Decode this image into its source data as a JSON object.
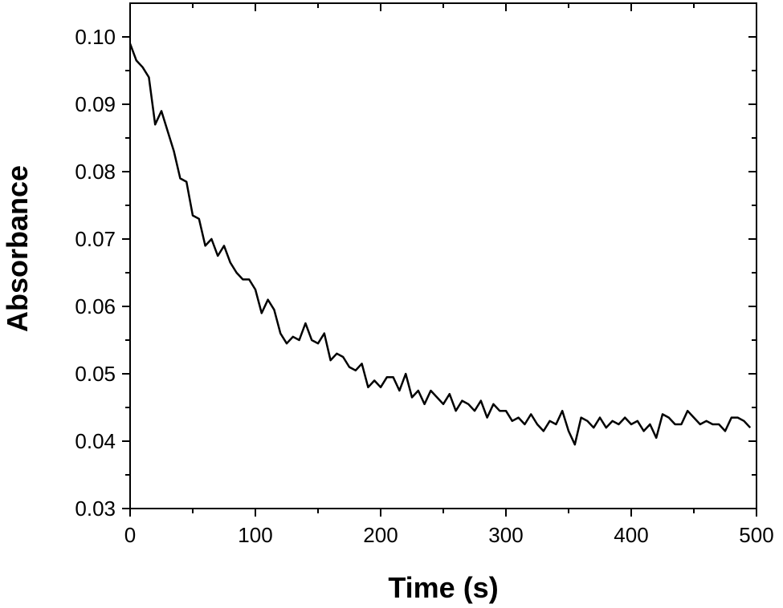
{
  "chart_data": {
    "type": "line",
    "xlabel": "Time (s)",
    "ylabel": "Absorbance",
    "color": "#000000",
    "x": [
      0,
      5,
      10,
      15,
      20,
      25,
      30,
      35,
      40,
      45,
      50,
      55,
      60,
      65,
      70,
      75,
      80,
      85,
      90,
      95,
      100,
      105,
      110,
      115,
      120,
      125,
      130,
      135,
      140,
      145,
      150,
      155,
      160,
      165,
      170,
      175,
      180,
      185,
      190,
      195,
      200,
      205,
      210,
      215,
      220,
      225,
      230,
      235,
      240,
      245,
      250,
      255,
      260,
      265,
      270,
      275,
      280,
      285,
      290,
      295,
      300,
      305,
      310,
      315,
      320,
      325,
      330,
      335,
      340,
      345,
      350,
      355,
      360,
      365,
      370,
      375,
      380,
      385,
      390,
      395,
      400,
      405,
      410,
      415,
      420,
      425,
      430,
      435,
      440,
      445,
      450,
      455,
      460,
      465,
      470,
      475,
      480,
      485,
      490,
      495
    ],
    "values": [
      0.099,
      0.0965,
      0.0955,
      0.094,
      0.087,
      0.089,
      0.086,
      0.083,
      0.079,
      0.0785,
      0.0735,
      0.073,
      0.069,
      0.07,
      0.0675,
      0.069,
      0.0665,
      0.065,
      0.064,
      0.064,
      0.0625,
      0.059,
      0.061,
      0.0595,
      0.056,
      0.0545,
      0.0555,
      0.055,
      0.0575,
      0.055,
      0.0545,
      0.056,
      0.052,
      0.053,
      0.0525,
      0.051,
      0.0505,
      0.0515,
      0.048,
      0.049,
      0.048,
      0.0495,
      0.0495,
      0.0475,
      0.05,
      0.0465,
      0.0475,
      0.0455,
      0.0475,
      0.0465,
      0.0455,
      0.047,
      0.0445,
      0.046,
      0.0455,
      0.0445,
      0.046,
      0.0435,
      0.0455,
      0.0445,
      0.0445,
      0.043,
      0.0435,
      0.0425,
      0.044,
      0.0425,
      0.0415,
      0.043,
      0.0425,
      0.0445,
      0.0415,
      0.0395,
      0.0435,
      0.043,
      0.042,
      0.0435,
      0.042,
      0.043,
      0.0425,
      0.0435,
      0.0425,
      0.043,
      0.0415,
      0.0425,
      0.0405,
      0.044,
      0.0435,
      0.0425,
      0.0425,
      0.0445,
      0.0435,
      0.0425,
      0.043,
      0.0425,
      0.0425,
      0.0415,
      0.0435,
      0.0435,
      0.043,
      0.042
    ],
    "xlim": [
      0,
      500
    ],
    "xticks": [
      0,
      100,
      200,
      300,
      400,
      500
    ],
    "xminorticks": [
      50,
      150,
      250,
      350,
      450
    ],
    "ylim": [
      0.03,
      0.105
    ],
    "yticks": [
      0.03,
      0.04,
      0.05,
      0.06,
      0.07,
      0.08,
      0.09,
      {
        "value": 0.1,
        "label": "0.10"
      }
    ],
    "yminorticks": [
      0.035,
      0.045,
      0.055,
      0.065,
      0.075,
      0.085,
      0.095
    ]
  }
}
